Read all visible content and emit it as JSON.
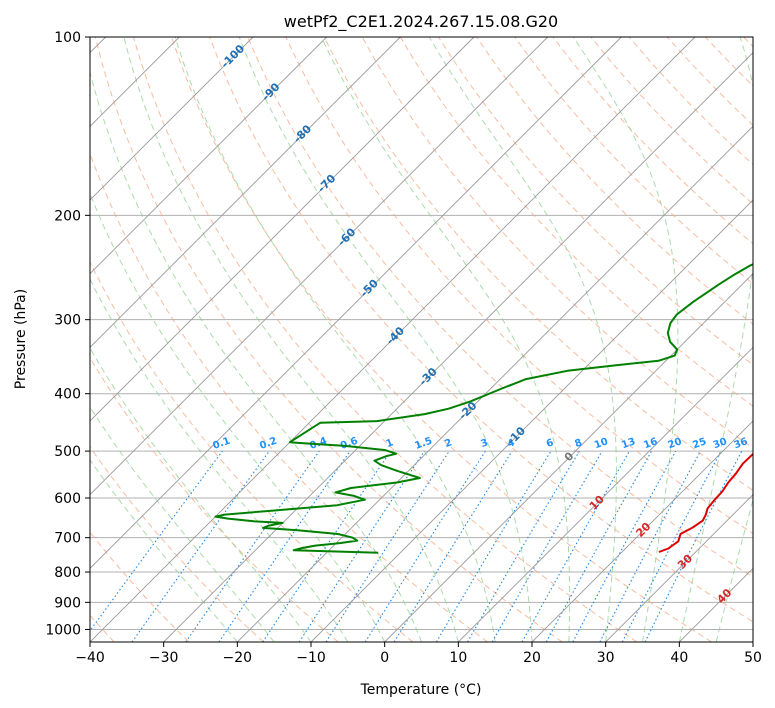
{
  "chart_data": {
    "type": "line",
    "title": "wetPf2_C2E1.2024.267.15.08.G20",
    "xlabel": "Temperature (°C)",
    "ylabel": "Pressure (hPa)",
    "xlim": [
      -40,
      50
    ],
    "ylim": [
      1050,
      100
    ],
    "x_ticks": [
      -40,
      -30,
      -20,
      -10,
      0,
      10,
      20,
      30,
      40,
      50
    ],
    "y_ticks": [
      100,
      200,
      300,
      400,
      500,
      600,
      700,
      800,
      900,
      1000
    ],
    "x_tick_labels": [
      "−40",
      "−30",
      "−20",
      "−10",
      "0",
      "10",
      "20",
      "30",
      "40",
      "50"
    ],
    "y_tick_labels": [
      "100",
      "200",
      "300",
      "400",
      "500",
      "600",
      "700",
      "800",
      "900",
      "1000"
    ],
    "grid": true,
    "series": [
      {
        "name": "Temperature",
        "color": "#dd0000",
        "points": [
          [
            25,
            740
          ],
          [
            25.8,
            730
          ],
          [
            26.2,
            710
          ],
          [
            25.5,
            690
          ],
          [
            26.3,
            672
          ],
          [
            26.7,
            655
          ],
          [
            26.3,
            640
          ],
          [
            25.7,
            625
          ],
          [
            25.5,
            605
          ],
          [
            25.4,
            585
          ],
          [
            25.0,
            565
          ],
          [
            24.8,
            545
          ],
          [
            24.4,
            525
          ],
          [
            24.5,
            500
          ],
          [
            24.0,
            475
          ],
          [
            23.0,
            460
          ],
          [
            22.5,
            448
          ],
          [
            21.5,
            437
          ],
          [
            20.2,
            420
          ],
          [
            18.0,
            395
          ],
          [
            15.5,
            365
          ],
          [
            14.0,
            345
          ],
          [
            13.0,
            330
          ],
          [
            12.0,
            310
          ],
          [
            11.5,
            295
          ],
          [
            10.8,
            284
          ],
          [
            9.5,
            274
          ],
          [
            8.0,
            262
          ],
          [
            6.5,
            248
          ],
          [
            5.0,
            235
          ],
          [
            3.5,
            220
          ],
          [
            2.0,
            205
          ],
          [
            1.0,
            192
          ],
          [
            0.5,
            180
          ],
          [
            -0.5,
            167
          ],
          [
            -0.7,
            160
          ],
          [
            -1.5,
            150
          ],
          [
            -2.0,
            140
          ],
          [
            -2.8,
            130
          ],
          [
            -3.2,
            122
          ],
          [
            -2.9,
            116
          ],
          [
            -2.6,
            112
          ],
          [
            -2.1,
            108
          ],
          [
            -1.5,
            104
          ],
          [
            -0.9,
            100
          ]
        ]
      },
      {
        "name": "Dewpoint",
        "color": "#008000",
        "points": [
          [
            -13,
            742
          ],
          [
            -24.8,
            735
          ],
          [
            -24.0,
            729
          ],
          [
            -22.5,
            722
          ],
          [
            -19.5,
            715
          ],
          [
            -17.5,
            708
          ],
          [
            -18.5,
            700
          ],
          [
            -21.0,
            690
          ],
          [
            -27.0,
            680
          ],
          [
            -32.0,
            674
          ],
          [
            -31.5,
            668
          ],
          [
            -30.0,
            661
          ],
          [
            -34.0,
            657
          ],
          [
            -38.0,
            650
          ],
          [
            -40.0,
            645
          ],
          [
            -39.0,
            640
          ],
          [
            -33.0,
            630
          ],
          [
            -25.0,
            617
          ],
          [
            -22.0,
            604
          ],
          [
            -24.0,
            595
          ],
          [
            -27.0,
            587
          ],
          [
            -25.5,
            577
          ],
          [
            -20.0,
            565
          ],
          [
            -17.5,
            555
          ],
          [
            -21.5,
            540
          ],
          [
            -24.5,
            528
          ],
          [
            -26.0,
            519
          ],
          [
            -25.0,
            510
          ],
          [
            -24.0,
            505
          ],
          [
            -26.0,
            498
          ],
          [
            -32.0,
            490
          ],
          [
            -38.0,
            485
          ],
          [
            -40.0,
            483
          ],
          [
            -38.5,
            448
          ],
          [
            -31.0,
            445
          ],
          [
            -25.5,
            433
          ],
          [
            -23.0,
            424
          ],
          [
            -21.0,
            412
          ],
          [
            -18.5,
            392
          ],
          [
            -16.5,
            378
          ],
          [
            -12.0,
            366
          ],
          [
            -6.0,
            358
          ],
          [
            -1.0,
            352
          ],
          [
            0.5,
            345
          ],
          [
            0.0,
            337
          ],
          [
            -2.0,
            327
          ],
          [
            -3.5,
            316
          ],
          [
            -4.5,
            304
          ],
          [
            -4.8,
            294
          ],
          [
            -4.3,
            280
          ],
          [
            -3.2,
            262
          ],
          [
            -2.5,
            253
          ],
          [
            -1.5,
            243
          ],
          [
            0.3,
            233
          ],
          [
            1.5,
            222
          ],
          [
            2.6,
            212
          ],
          [
            2.8,
            202
          ],
          [
            1.8,
            193
          ],
          [
            0.8,
            185
          ],
          [
            -0.5,
            176
          ],
          [
            -1.7,
            170
          ],
          [
            -2.5,
            164
          ],
          [
            -3.5,
            158
          ],
          [
            -3.8,
            152
          ],
          [
            -3.5,
            146
          ],
          [
            -2.5,
            140
          ],
          [
            -1.5,
            133
          ],
          [
            -1.0,
            126
          ],
          [
            -1.5,
            120
          ],
          [
            -2.7,
            114
          ],
          [
            -3.6,
            108
          ],
          [
            -3.0,
            104
          ],
          [
            -2.2,
            100
          ]
        ]
      }
    ],
    "reference_lines": {
      "isotherms": "solid grey, every 10 °C, skewed",
      "dry_adiabats": "dashed orange",
      "moist_adiabats": "dashed green",
      "mixing_ratio": "dotted blue"
    },
    "isotherm_labels": [
      {
        "text": "-100",
        "value": -100
      },
      {
        "text": "-90",
        "value": -90
      },
      {
        "text": "-80",
        "value": -80
      },
      {
        "text": "-70",
        "value": -70
      },
      {
        "text": "-60",
        "value": -60
      },
      {
        "text": "-50",
        "value": -50
      },
      {
        "text": "-40",
        "value": -40
      },
      {
        "text": "-30",
        "value": -30
      },
      {
        "text": "-20",
        "value": -20
      },
      {
        "text": "-10",
        "value": -10
      },
      {
        "text": "0",
        "value": 0
      },
      {
        "text": "10",
        "value": 10
      },
      {
        "text": "20",
        "value": 20
      },
      {
        "text": "30",
        "value": 30
      },
      {
        "text": "40",
        "value": 40
      }
    ],
    "mixing_ratio_labels": [
      "0.1",
      "0.2",
      "0.4",
      "0.6",
      "1",
      "1.5",
      "2",
      "3",
      "4",
      "6",
      "8",
      "10",
      "13",
      "16",
      "20",
      "25",
      "30",
      "36"
    ],
    "colors": {
      "isotherm_label_cold": "#1f6fb5",
      "isotherm_label_zero": "#777777",
      "isotherm_label_warm": "#d62728",
      "mixing_ratio_label": "#1e90ff",
      "grid": "#b0b0b0",
      "dry_adiabat": "#f4a582",
      "moist_adiabat": "#8fcf8f",
      "mixing_ratio_line": "#1e88e5"
    }
  }
}
